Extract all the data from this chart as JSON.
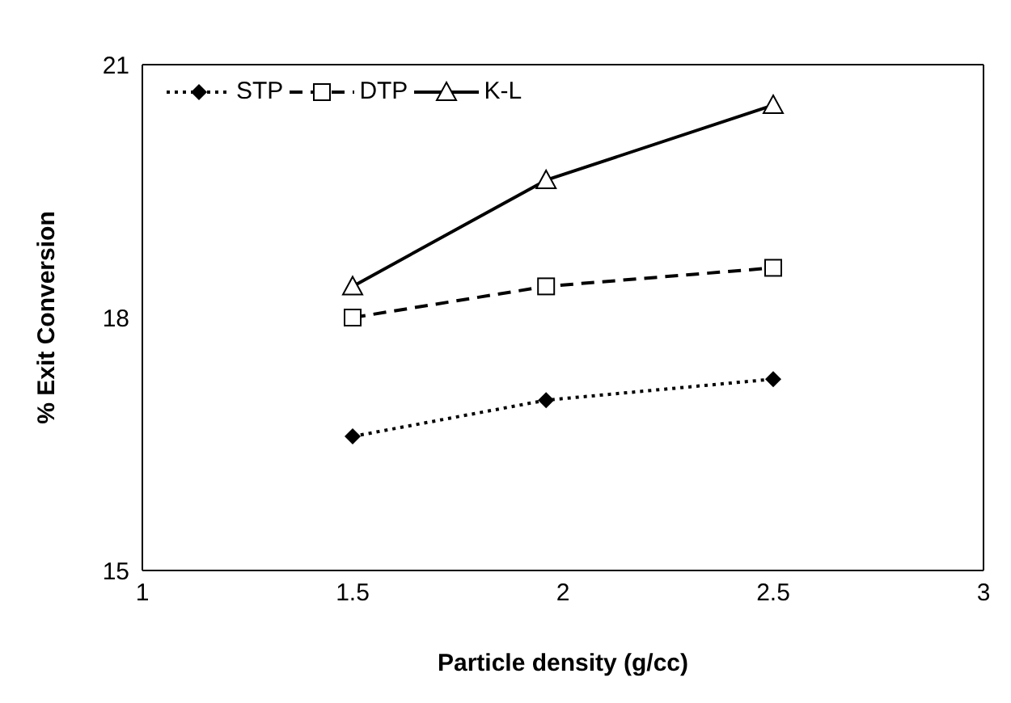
{
  "chart_data": {
    "type": "line",
    "xlabel": "Particle density (g/cc)",
    "ylabel": "% Exit Conversion",
    "x": [
      1.5,
      1.96,
      2.5
    ],
    "series": [
      {
        "name": "STP",
        "color": "#000000",
        "values": [
          16.59,
          17.02,
          17.27
        ],
        "marker": "diamond",
        "line_style": "dotted"
      },
      {
        "name": "DTP",
        "color": "#000000",
        "values": [
          18.0,
          18.37,
          18.59
        ],
        "marker": "square",
        "line_style": "dashed"
      },
      {
        "name": "K-L",
        "color": "#000000",
        "values": [
          18.37,
          19.63,
          20.52
        ],
        "marker": "triangle",
        "line_style": "solid"
      }
    ],
    "xlim": [
      1,
      3
    ],
    "xticks": [
      1,
      1.5,
      2,
      2.5,
      3
    ],
    "ylim": [
      15,
      21
    ],
    "yticks": [
      15,
      18,
      21
    ],
    "grid": false,
    "legend": "top left"
  }
}
